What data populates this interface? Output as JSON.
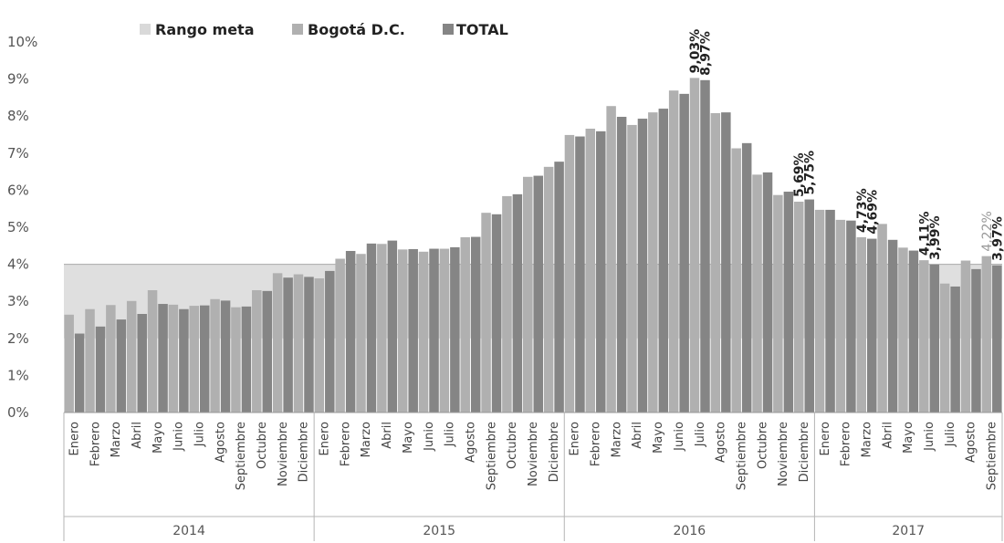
{
  "chart_data": {
    "type": "bar",
    "title": "",
    "xlabel": "",
    "ylabel": "",
    "ylim": [
      0,
      10
    ],
    "y_ticks": [
      "0%",
      "1%",
      "2%",
      "3%",
      "4%",
      "5%",
      "6%",
      "7%",
      "8%",
      "9%",
      "10%"
    ],
    "grid": false,
    "legend_position": "top",
    "legend": [
      "Rango meta",
      "Bogotá D.C.",
      "TOTAL"
    ],
    "target_range": {
      "name": "Rango meta",
      "low": 2,
      "high": 4
    },
    "years": [
      {
        "label": "2014",
        "months": 12
      },
      {
        "label": "2015",
        "months": 12
      },
      {
        "label": "2016",
        "months": 12
      },
      {
        "label": "2017",
        "months": 9
      }
    ],
    "categories": [
      "Enero",
      "Febrero",
      "Marzo",
      "Abril",
      "Mayo",
      "Junio",
      "Julio",
      "Agosto",
      "Septiembre",
      "Octubre",
      "Noviembre",
      "Diciembre",
      "Enero",
      "Febrero",
      "Marzo",
      "Abril",
      "Mayo",
      "Junio",
      "Julio",
      "Agosto",
      "Septiembre",
      "Octubre",
      "Noviembre",
      "Diciembre",
      "Enero",
      "Febrero",
      "Marzo",
      "Abril",
      "Mayo",
      "Junio",
      "Julio",
      "Agosto",
      "Septiembre",
      "Octubre",
      "Noviembre",
      "Diciembre",
      "Enero",
      "Febrero",
      "Marzo",
      "Abril",
      "Mayo",
      "Junio",
      "Julio",
      "Agosto",
      "Septiembre"
    ],
    "series": [
      {
        "name": "Bogotá D.C.",
        "color": "#b0b0b0",
        "values": [
          2.64,
          2.79,
          2.9,
          3.01,
          3.3,
          2.91,
          2.88,
          3.06,
          2.84,
          3.3,
          3.76,
          3.73,
          3.62,
          4.15,
          4.28,
          4.55,
          4.4,
          4.34,
          4.42,
          4.73,
          5.39,
          5.84,
          6.36,
          6.63,
          7.49,
          7.66,
          8.27,
          7.76,
          8.1,
          8.69,
          9.03,
          8.08,
          7.13,
          6.42,
          5.87,
          5.69,
          5.47,
          5.2,
          4.73,
          5.09,
          4.45,
          4.11,
          3.48,
          4.1,
          4.22
        ]
      },
      {
        "name": "TOTAL",
        "color": "#858585",
        "values": [
          2.13,
          2.32,
          2.51,
          2.66,
          2.93,
          2.79,
          2.89,
          3.02,
          2.86,
          3.28,
          3.64,
          3.66,
          3.82,
          4.36,
          4.56,
          4.64,
          4.41,
          4.42,
          4.46,
          4.74,
          5.35,
          5.89,
          6.39,
          6.77,
          7.45,
          7.59,
          7.98,
          7.93,
          8.2,
          8.6,
          8.97,
          8.1,
          7.27,
          6.48,
          5.96,
          5.75,
          5.47,
          5.18,
          4.69,
          4.66,
          4.37,
          3.99,
          3.4,
          3.87,
          3.97
        ]
      }
    ],
    "data_labels": [
      {
        "month_index": 30,
        "series": "Bogotá D.C.",
        "text": "9,03%"
      },
      {
        "month_index": 30,
        "series": "TOTAL",
        "text": "8,97%"
      },
      {
        "month_index": 35,
        "series": "Bogotá D.C.",
        "text": "5,69%"
      },
      {
        "month_index": 35,
        "series": "TOTAL",
        "text": "5,75%"
      },
      {
        "month_index": 38,
        "series": "Bogotá D.C.",
        "text": "4,73%"
      },
      {
        "month_index": 38,
        "series": "TOTAL",
        "text": "4,69%"
      },
      {
        "month_index": 41,
        "series": "Bogotá D.C.",
        "text": "4,11%"
      },
      {
        "month_index": 41,
        "series": "TOTAL",
        "text": "3,99%"
      },
      {
        "month_index": 44,
        "series": "Bogotá D.C.",
        "text": "4,22%",
        "light": true
      },
      {
        "month_index": 44,
        "series": "TOTAL",
        "text": "3,97%"
      }
    ],
    "colors": {
      "target": "#d9d9d9",
      "bogota": "#b0b0b0",
      "total": "#858585"
    }
  }
}
